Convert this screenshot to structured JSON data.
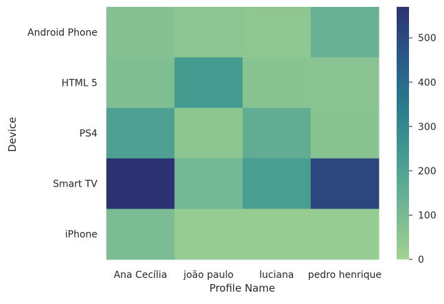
{
  "chart_data": {
    "type": "heatmap",
    "xlabel": "Profile Name",
    "ylabel": "Device",
    "x_categories": [
      "Ana Cecília",
      "joão paulo",
      "luciana",
      "pedro henrique"
    ],
    "y_categories": [
      "Android Phone",
      "HTML 5",
      "PS4",
      "Smart TV",
      "iPhone"
    ],
    "values": [
      [
        70,
        55,
        45,
        140
      ],
      [
        85,
        230,
        65,
        60
      ],
      [
        210,
        50,
        160,
        65
      ],
      [
        570,
        110,
        220,
        510
      ],
      [
        95,
        30,
        30,
        30
      ]
    ],
    "colorbar": {
      "min": 0,
      "max": 570,
      "ticks": [
        0,
        100,
        200,
        300,
        400,
        500
      ]
    },
    "colormap": "crest",
    "colormap_stops": [
      "#a3d28f",
      "#73b795",
      "#469c91",
      "#2b7c8d",
      "#2a5a89",
      "#2c3271"
    ]
  }
}
